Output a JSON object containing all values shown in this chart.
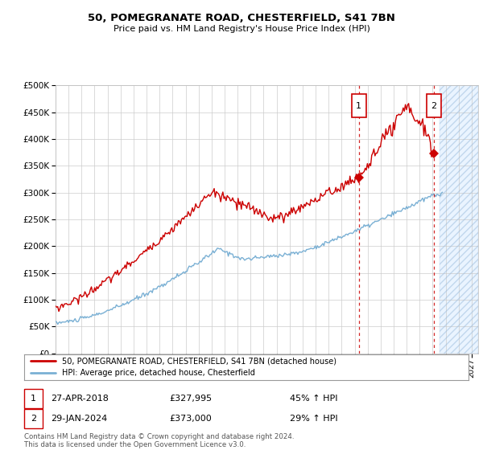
{
  "title": "50, POMEGRANATE ROAD, CHESTERFIELD, S41 7BN",
  "subtitle": "Price paid vs. HM Land Registry's House Price Index (HPI)",
  "ytick_values": [
    0,
    50000,
    100000,
    150000,
    200000,
    250000,
    300000,
    350000,
    400000,
    450000,
    500000
  ],
  "xlim_start": 1995.0,
  "xlim_end": 2027.5,
  "ylim": [
    0,
    500000
  ],
  "hpi_color": "#7ab0d4",
  "price_color": "#cc0000",
  "marker1_date": 2018.32,
  "marker1_price": 327995,
  "marker1_label": "1",
  "marker1_text": "27-APR-2018",
  "marker1_value": "£327,995",
  "marker1_hpi": "45% ↑ HPI",
  "marker2_date": 2024.08,
  "marker2_price": 373000,
  "marker2_label": "2",
  "marker2_text": "29-JAN-2024",
  "marker2_value": "£373,000",
  "marker2_hpi": "29% ↑ HPI",
  "future_shade_start": 2024.5,
  "legend_line1": "50, POMEGRANATE ROAD, CHESTERFIELD, S41 7BN (detached house)",
  "legend_line2": "HPI: Average price, detached house, Chesterfield",
  "footer": "Contains HM Land Registry data © Crown copyright and database right 2024.\nThis data is licensed under the Open Government Licence v3.0.",
  "background_color": "#ffffff",
  "grid_color": "#cccccc"
}
